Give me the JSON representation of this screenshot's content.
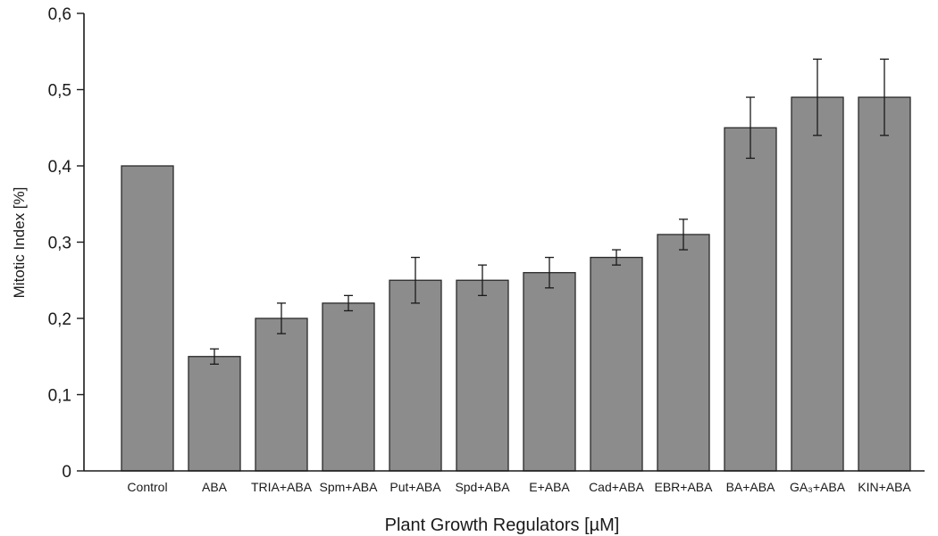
{
  "chart_data": {
    "type": "bar",
    "title": "",
    "xlabel": "Plant Growth Regulators [µM]",
    "ylabel": "Mitotic Index [%]",
    "ylim": [
      0,
      0.6
    ],
    "yticks": [
      0,
      0.1,
      0.2,
      0.3,
      0.4,
      0.5,
      0.6
    ],
    "ytick_labels": [
      "0",
      "0,1",
      "0,2",
      "0,3",
      "0,4",
      "0,5",
      "0,6"
    ],
    "grid": false,
    "categories": [
      "Control",
      "ABA",
      "TRIA+ABA",
      "Spm+ABA",
      "Put+ABA",
      "Spd+ABA",
      "E+ABA",
      "Cad+ABA",
      "EBR+ABA",
      "BA+ABA",
      "GA₃+ABA",
      "KIN+ABA"
    ],
    "values": [
      0.4,
      0.15,
      0.2,
      0.22,
      0.25,
      0.25,
      0.26,
      0.28,
      0.31,
      0.45,
      0.49,
      0.49
    ],
    "errors": [
      0,
      0.01,
      0.02,
      0.01,
      0.03,
      0.02,
      0.02,
      0.01,
      0.02,
      0.04,
      0.05,
      0.05
    ],
    "bar_color": "#8c8c8c",
    "bar_edge_color": "#2a2a2a"
  }
}
